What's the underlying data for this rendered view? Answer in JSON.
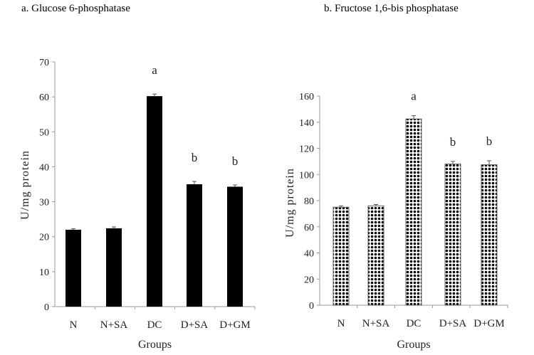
{
  "chart_data": [
    {
      "type": "bar",
      "title": "a. Glucose 6-phosphatase",
      "xlabel": "Groups",
      "ylabel": "U/mg protein",
      "ylim": [
        0,
        70
      ],
      "yticks": [
        0,
        10,
        20,
        30,
        40,
        50,
        60,
        70
      ],
      "categories": [
        "N",
        "N+SA",
        "DC",
        "D+SA",
        "D+GM"
      ],
      "values": [
        22,
        22.4,
        60.2,
        35,
        34.3
      ],
      "errors": [
        0.3,
        0.4,
        0.6,
        0.8,
        0.5
      ],
      "annotations": [
        "",
        "",
        "a",
        "b",
        "b"
      ],
      "fill": "solid",
      "bar_color": "#000000",
      "grid": false
    },
    {
      "type": "bar",
      "title": "b. Fructose 1,6-bis phosphatase",
      "xlabel": "Groups",
      "ylabel": "U/mg protein",
      "ylim": [
        0,
        160
      ],
      "yticks": [
        0,
        20,
        40,
        60,
        80,
        100,
        120,
        140,
        160
      ],
      "categories": [
        "N",
        "N+SA",
        "DC",
        "D+SA",
        "D+GM"
      ],
      "values": [
        75,
        76,
        142.5,
        108,
        107.5
      ],
      "errors": [
        1,
        1,
        2.5,
        2,
        3
      ],
      "annotations": [
        "",
        "",
        "a",
        "b",
        "b"
      ],
      "fill": "dotted",
      "bar_color": "#000000",
      "grid": false
    }
  ]
}
